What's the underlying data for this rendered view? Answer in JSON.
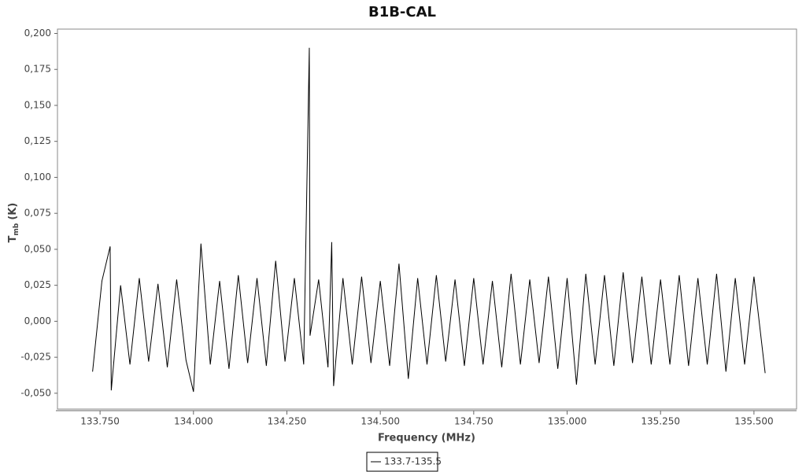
{
  "chart_data": {
    "type": "line",
    "title": "B1B-CAL",
    "x_label": "Frequency (MHz)",
    "y_label": {
      "main": "T",
      "sub": "mb",
      "unit": "(K)"
    },
    "x": [
      133.73,
      133.755,
      133.777,
      133.78,
      133.805,
      133.83,
      133.855,
      133.88,
      133.905,
      133.93,
      133.955,
      133.98,
      134.0,
      134.02,
      134.045,
      134.07,
      134.095,
      134.12,
      134.145,
      134.17,
      134.195,
      134.22,
      134.245,
      134.27,
      134.295,
      134.31,
      134.312,
      134.335,
      134.36,
      134.37,
      134.375,
      134.4,
      134.425,
      134.45,
      134.475,
      134.5,
      134.525,
      134.55,
      134.575,
      134.6,
      134.625,
      134.65,
      134.675,
      134.7,
      134.725,
      134.75,
      134.775,
      134.8,
      134.825,
      134.85,
      134.875,
      134.9,
      134.925,
      134.95,
      134.975,
      135.0,
      135.025,
      135.05,
      135.075,
      135.1,
      135.125,
      135.15,
      135.175,
      135.2,
      135.225,
      135.25,
      135.275,
      135.3,
      135.325,
      135.35,
      135.375,
      135.4,
      135.425,
      135.45,
      135.475,
      135.5,
      135.53
    ],
    "series": [
      {
        "name": "133.7-135.5",
        "color": "#000000",
        "values": [
          -0.035,
          0.028,
          0.052,
          -0.048,
          0.025,
          -0.03,
          0.03,
          -0.028,
          0.026,
          -0.032,
          0.029,
          -0.027,
          -0.049,
          0.054,
          -0.03,
          0.028,
          -0.033,
          0.032,
          -0.029,
          0.03,
          -0.031,
          0.042,
          -0.028,
          0.03,
          -0.03,
          0.19,
          -0.01,
          0.029,
          -0.032,
          0.055,
          -0.045,
          0.03,
          -0.03,
          0.031,
          -0.029,
          0.028,
          -0.031,
          0.04,
          -0.04,
          0.03,
          -0.03,
          0.032,
          -0.028,
          0.029,
          -0.031,
          0.03,
          -0.03,
          0.028,
          -0.032,
          0.033,
          -0.03,
          0.029,
          -0.029,
          0.031,
          -0.033,
          0.03,
          -0.044,
          0.033,
          -0.03,
          0.032,
          -0.031,
          0.034,
          -0.029,
          0.031,
          -0.03,
          0.029,
          -0.03,
          0.032,
          -0.031,
          0.03,
          -0.03,
          0.033,
          -0.035,
          0.03,
          -0.03,
          0.031,
          -0.036
        ]
      }
    ],
    "xlim": [
      133.636,
      135.614
    ],
    "ylim": [
      -0.061,
      0.203
    ],
    "xticks": [
      {
        "value": 133.75,
        "label": "133.750"
      },
      {
        "value": 134.0,
        "label": "134.000"
      },
      {
        "value": 134.25,
        "label": "134.250"
      },
      {
        "value": 134.5,
        "label": "134.500"
      },
      {
        "value": 134.75,
        "label": "134.750"
      },
      {
        "value": 135.0,
        "label": "135.000"
      },
      {
        "value": 135.25,
        "label": "135.250"
      },
      {
        "value": 135.5,
        "label": "135.500"
      }
    ],
    "yticks": [
      {
        "value": 0.2,
        "label": "0,200"
      },
      {
        "value": 0.175,
        "label": "0,175"
      },
      {
        "value": 0.15,
        "label": "0,150"
      },
      {
        "value": 0.125,
        "label": "0,125"
      },
      {
        "value": 0.1,
        "label": "0,100"
      },
      {
        "value": 0.075,
        "label": "0,075"
      },
      {
        "value": 0.05,
        "label": "0,050"
      },
      {
        "value": 0.025,
        "label": "0,025"
      },
      {
        "value": 0,
        "label": "0,000"
      },
      {
        "value": -0.025,
        "label": "-0,025"
      },
      {
        "value": -0.05,
        "label": "-0,050"
      }
    ],
    "grid": false
  }
}
